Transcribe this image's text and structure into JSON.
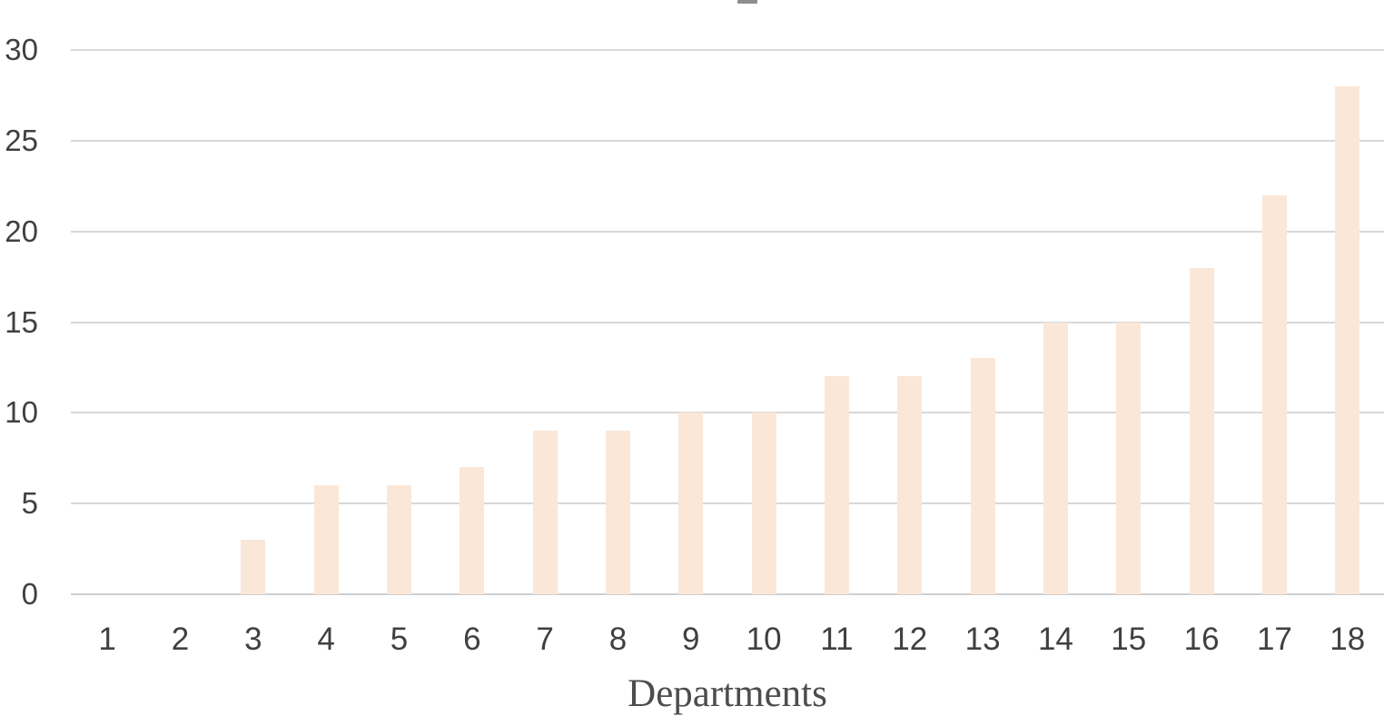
{
  "chart_data": {
    "type": "bar",
    "categories": [
      "1",
      "2",
      "3",
      "4",
      "5",
      "6",
      "7",
      "8",
      "9",
      "10",
      "11",
      "12",
      "13",
      "14",
      "15",
      "16",
      "17",
      "18"
    ],
    "values": [
      0,
      0,
      3,
      6,
      6,
      7,
      9,
      9,
      10,
      10,
      12,
      12,
      13,
      15,
      15,
      18,
      22,
      28
    ],
    "title": "",
    "xlabel": "Departments",
    "ylabel": "",
    "ylim": [
      0,
      30
    ],
    "yticks": [
      0,
      5,
      10,
      15,
      20,
      25,
      30
    ],
    "grid": true,
    "legend_position": "none",
    "colors": {
      "bar_fill": "#FBE7D8",
      "gridline": "#D8D8D8",
      "zero_line": "#CFCFCF",
      "tick_label_text": "#404040",
      "axis_title_text": "#4D4D4D",
      "title_fragment": "#8E8E8E"
    }
  }
}
